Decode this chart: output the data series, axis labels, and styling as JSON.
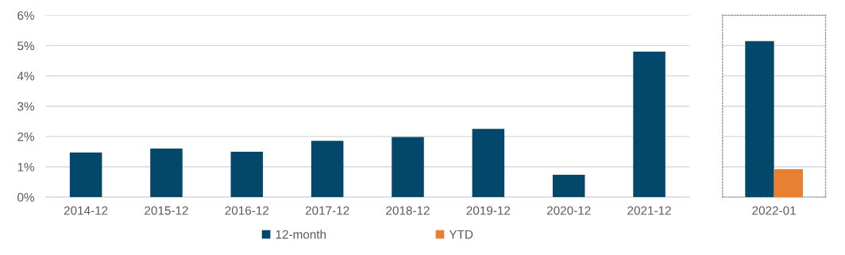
{
  "chart_data": [
    {
      "type": "bar",
      "categories": [
        "2014-12",
        "2015-12",
        "2016-12",
        "2017-12",
        "2018-12",
        "2019-12",
        "2020-12",
        "2021-12"
      ],
      "series": [
        {
          "name": "12-month",
          "color": "#03486b",
          "values": [
            1.47,
            1.6,
            1.5,
            1.86,
            1.98,
            2.25,
            0.74,
            4.8
          ]
        }
      ],
      "ylim": [
        0,
        6
      ],
      "yticks": [
        {
          "value": 0,
          "label": "0%"
        },
        {
          "value": 1,
          "label": "1%"
        },
        {
          "value": 2,
          "label": "2%"
        },
        {
          "value": 3,
          "label": "3%"
        },
        {
          "value": 4,
          "label": "4%"
        },
        {
          "value": 5,
          "label": "5%"
        },
        {
          "value": 6,
          "label": "6%"
        }
      ],
      "grid": "y",
      "legend": "bottom"
    },
    {
      "type": "bar",
      "categories": [
        "2022-01"
      ],
      "series": [
        {
          "name": "12-month",
          "color": "#03486b",
          "values": [
            5.15
          ]
        },
        {
          "name": "YTD",
          "color": "#e97f30",
          "values": [
            0.92
          ]
        }
      ],
      "ylim": [
        0,
        6
      ],
      "yticks": [
        0,
        1,
        2,
        3,
        4,
        5,
        6
      ],
      "grid": "y",
      "tick_labels": "x"
    }
  ]
}
